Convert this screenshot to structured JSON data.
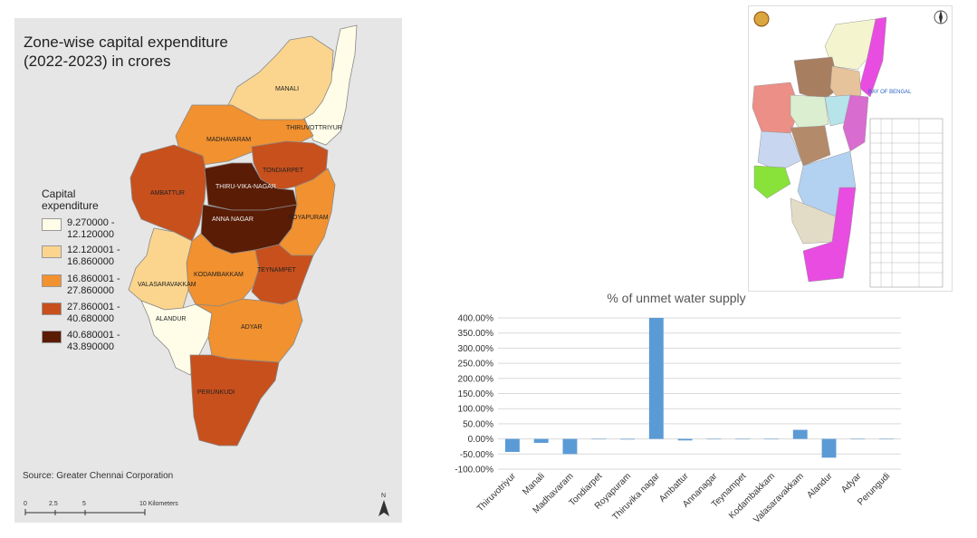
{
  "map_panel": {
    "title": "Zone-wise capital expenditure\n(2022-2023) in crores",
    "legend_title": "Capital expenditure",
    "legend": [
      {
        "label": "9.270000 -\n12.120000",
        "color": "#fffde8"
      },
      {
        "label": "12.120001 -\n16.860000",
        "color": "#fbd58e"
      },
      {
        "label": "16.860001 -\n27.860000",
        "color": "#f2912f"
      },
      {
        "label": "27.860001 -\n40.680000",
        "color": "#c8501c"
      },
      {
        "label": "40.680001 -\n43.890000",
        "color": "#5a1c05"
      }
    ],
    "zones": [
      "MANALI",
      "THIRUVOTTRIYUR",
      "MADHAVARAM",
      "TONDIARPET",
      "AMBATTUR",
      "THIRU-VIKA-NAGAR",
      "ANNA NAGAR",
      "ROYAPURAM",
      "KODAMBAKKAM",
      "TEYNAMPET",
      "VALASARAVAKKAM",
      "ALANDUR",
      "ADYAR",
      "PERUNKUDI"
    ],
    "source": "Source: Greater Chennai Corporation",
    "scale_ticks": [
      "0",
      "2.5",
      "5",
      "10 Kilometers"
    ],
    "north_label": "N"
  },
  "reference_map": {
    "bay_label": "BAY OF BENGAL"
  },
  "chart_data": {
    "type": "bar",
    "title": "% of unmet water supply",
    "categories": [
      "Thiruvotriyur",
      "Manali",
      "Madhavaram",
      "Tondiarpet",
      "Royapuram",
      "Thiruvika nagar",
      "Ambattur",
      "Annanagar",
      "Teynampet",
      "Kodambakkam",
      "Valasaravakkam",
      "Alandur",
      "Adyar",
      "Perungudi"
    ],
    "values": [
      -43,
      -13,
      -50,
      0,
      -2,
      400,
      -5,
      0,
      0,
      -1,
      30,
      -62,
      -1,
      0
    ],
    "ylim": [
      -100,
      400
    ],
    "yticks": [
      "400.00%",
      "350.00%",
      "300.00%",
      "250.00%",
      "200.00%",
      "150.00%",
      "100.00%",
      "50.00%",
      "0.00%",
      "-50.00%",
      "-100.00%"
    ],
    "bar_color": "#5b9bd5",
    "grid": true
  }
}
